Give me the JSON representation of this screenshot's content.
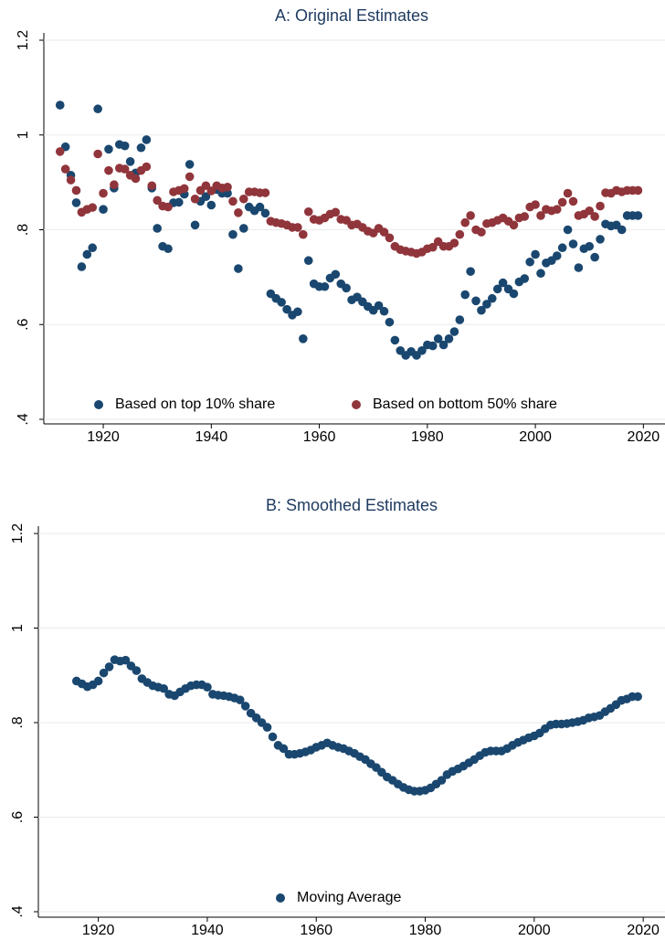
{
  "chart_data": [
    {
      "type": "scatter",
      "title": "A: Original Estimates",
      "x": [
        1912,
        1913,
        1914,
        1915,
        1916,
        1917,
        1918,
        1919,
        1920,
        1921,
        1922,
        1923,
        1924,
        1925,
        1926,
        1927,
        1928,
        1929,
        1930,
        1931,
        1932,
        1933,
        1934,
        1935,
        1936,
        1937,
        1938,
        1939,
        1940,
        1941,
        1942,
        1943,
        1944,
        1945,
        1946,
        1947,
        1948,
        1949,
        1950,
        1951,
        1952,
        1953,
        1954,
        1955,
        1956,
        1957,
        1958,
        1959,
        1960,
        1961,
        1962,
        1963,
        1964,
        1965,
        1966,
        1967,
        1968,
        1969,
        1970,
        1971,
        1972,
        1973,
        1974,
        1975,
        1976,
        1977,
        1978,
        1979,
        1980,
        1981,
        1982,
        1983,
        1984,
        1985,
        1986,
        1987,
        1988,
        1989,
        1990,
        1991,
        1992,
        1993,
        1994,
        1995,
        1996,
        1997,
        1998,
        1999,
        2000,
        2001,
        2002,
        2003,
        2004,
        2005,
        2006,
        2007,
        2008,
        2009,
        2010,
        2011,
        2012,
        2013,
        2014,
        2015,
        2016,
        2017,
        2018,
        2019
      ],
      "series": [
        {
          "name": "Based on top 10% share",
          "color": "#1a476f",
          "values": [
            1.063,
            0.975,
            0.915,
            0.857,
            0.722,
            0.748,
            0.762,
            1.055,
            0.843,
            0.97,
            0.888,
            0.98,
            0.977,
            0.944,
            0.92,
            0.973,
            0.99,
            0.888,
            0.803,
            0.765,
            0.76,
            0.857,
            0.858,
            0.875,
            0.938,
            0.81,
            0.86,
            0.87,
            0.852,
            0.885,
            0.877,
            0.877,
            0.79,
            0.718,
            0.803,
            0.848,
            0.84,
            0.848,
            0.835,
            0.665,
            0.655,
            0.647,
            0.632,
            0.62,
            0.627,
            0.57,
            0.735,
            0.686,
            0.68,
            0.68,
            0.698,
            0.706,
            0.686,
            0.677,
            0.652,
            0.658,
            0.648,
            0.638,
            0.63,
            0.64,
            0.628,
            0.605,
            0.567,
            0.545,
            0.535,
            0.543,
            0.535,
            0.545,
            0.557,
            0.555,
            0.57,
            0.557,
            0.57,
            0.585,
            0.61,
            0.663,
            0.712,
            0.65,
            0.63,
            0.643,
            0.655,
            0.675,
            0.688,
            0.675,
            0.665,
            0.69,
            0.697,
            0.732,
            0.748,
            0.708,
            0.73,
            0.735,
            0.745,
            0.762,
            0.8,
            0.77,
            0.72,
            0.76,
            0.765,
            0.742,
            0.78,
            0.812,
            0.808,
            0.81,
            0.8,
            0.83,
            0.83,
            0.83
          ]
        },
        {
          "name": "Based on bottom 50% share",
          "color": "#90353b",
          "values": [
            0.965,
            0.928,
            0.905,
            0.883,
            0.837,
            0.843,
            0.847,
            0.96,
            0.877,
            0.925,
            0.895,
            0.93,
            0.928,
            0.915,
            0.908,
            0.925,
            0.933,
            0.893,
            0.862,
            0.85,
            0.848,
            0.88,
            0.883,
            0.887,
            0.912,
            0.865,
            0.883,
            0.893,
            0.882,
            0.893,
            0.888,
            0.89,
            0.86,
            0.836,
            0.865,
            0.88,
            0.88,
            0.878,
            0.878,
            0.818,
            0.815,
            0.813,
            0.81,
            0.805,
            0.805,
            0.79,
            0.838,
            0.822,
            0.82,
            0.825,
            0.833,
            0.837,
            0.822,
            0.82,
            0.81,
            0.812,
            0.805,
            0.797,
            0.793,
            0.803,
            0.795,
            0.783,
            0.765,
            0.758,
            0.755,
            0.753,
            0.75,
            0.753,
            0.76,
            0.763,
            0.775,
            0.765,
            0.765,
            0.772,
            0.79,
            0.815,
            0.83,
            0.8,
            0.795,
            0.813,
            0.815,
            0.82,
            0.825,
            0.818,
            0.81,
            0.825,
            0.828,
            0.848,
            0.853,
            0.83,
            0.843,
            0.84,
            0.843,
            0.858,
            0.877,
            0.86,
            0.83,
            0.833,
            0.84,
            0.828,
            0.85,
            0.878,
            0.877,
            0.883,
            0.88,
            0.883,
            0.883,
            0.883
          ]
        }
      ],
      "xlim": [
        1909,
        2024
      ],
      "xticks": [
        1920,
        1940,
        1960,
        1980,
        2000,
        2020
      ],
      "ylim": [
        0.4,
        1.2
      ],
      "yticks": [
        {
          "value": 0.4,
          "label": ".4"
        },
        {
          "value": 0.6,
          "label": ".6"
        },
        {
          "value": 0.8,
          "label": ".8"
        },
        1,
        1.2
      ],
      "grid": true,
      "legend": "bottom"
    },
    {
      "type": "scatter",
      "title": "B: Smoothed Estimates",
      "x": [
        1916,
        1917,
        1918,
        1919,
        1920,
        1921,
        1922,
        1923,
        1924,
        1925,
        1926,
        1927,
        1928,
        1929,
        1930,
        1931,
        1932,
        1933,
        1934,
        1935,
        1936,
        1937,
        1938,
        1939,
        1940,
        1941,
        1942,
        1943,
        1944,
        1945,
        1946,
        1947,
        1948,
        1949,
        1950,
        1951,
        1952,
        1953,
        1954,
        1955,
        1956,
        1957,
        1958,
        1959,
        1960,
        1961,
        1962,
        1963,
        1964,
        1965,
        1966,
        1967,
        1968,
        1969,
        1970,
        1971,
        1972,
        1973,
        1974,
        1975,
        1976,
        1977,
        1978,
        1979,
        1980,
        1981,
        1982,
        1983,
        1984,
        1985,
        1986,
        1987,
        1988,
        1989,
        1990,
        1991,
        1992,
        1993,
        1994,
        1995,
        1996,
        1997,
        1998,
        1999,
        2000,
        2001,
        2002,
        2003,
        2004,
        2005,
        2006,
        2007,
        2008,
        2009,
        2010,
        2011,
        2012,
        2013,
        2014,
        2015,
        2016,
        2017,
        2018,
        2019
      ],
      "series": [
        {
          "name": "Moving Average",
          "color": "#1a476f",
          "values": [
            0.888,
            0.882,
            0.876,
            0.88,
            0.888,
            0.905,
            0.918,
            0.933,
            0.93,
            0.932,
            0.92,
            0.91,
            0.893,
            0.885,
            0.878,
            0.875,
            0.872,
            0.86,
            0.857,
            0.865,
            0.872,
            0.878,
            0.88,
            0.88,
            0.875,
            0.86,
            0.858,
            0.857,
            0.855,
            0.852,
            0.848,
            0.835,
            0.82,
            0.81,
            0.8,
            0.79,
            0.77,
            0.752,
            0.745,
            0.733,
            0.733,
            0.735,
            0.738,
            0.742,
            0.748,
            0.752,
            0.757,
            0.752,
            0.748,
            0.745,
            0.74,
            0.735,
            0.728,
            0.722,
            0.713,
            0.705,
            0.695,
            0.685,
            0.678,
            0.67,
            0.663,
            0.658,
            0.655,
            0.655,
            0.657,
            0.662,
            0.67,
            0.678,
            0.69,
            0.697,
            0.702,
            0.708,
            0.715,
            0.722,
            0.73,
            0.737,
            0.74,
            0.74,
            0.74,
            0.745,
            0.752,
            0.758,
            0.763,
            0.768,
            0.772,
            0.778,
            0.787,
            0.795,
            0.797,
            0.797,
            0.798,
            0.8,
            0.802,
            0.805,
            0.81,
            0.812,
            0.815,
            0.823,
            0.83,
            0.838,
            0.847,
            0.85,
            0.855,
            0.855
          ]
        }
      ],
      "xlim": [
        1909,
        2024
      ],
      "xticks": [
        1920,
        1940,
        1960,
        1980,
        2000,
        2020
      ],
      "ylim": [
        0.4,
        1.2
      ],
      "yticks": [
        {
          "value": 0.4,
          "label": ".4"
        },
        {
          "value": 0.6,
          "label": ".6"
        },
        {
          "value": 0.8,
          "label": ".8"
        },
        1,
        1.2
      ],
      "grid": true,
      "legend": "bottom"
    }
  ]
}
